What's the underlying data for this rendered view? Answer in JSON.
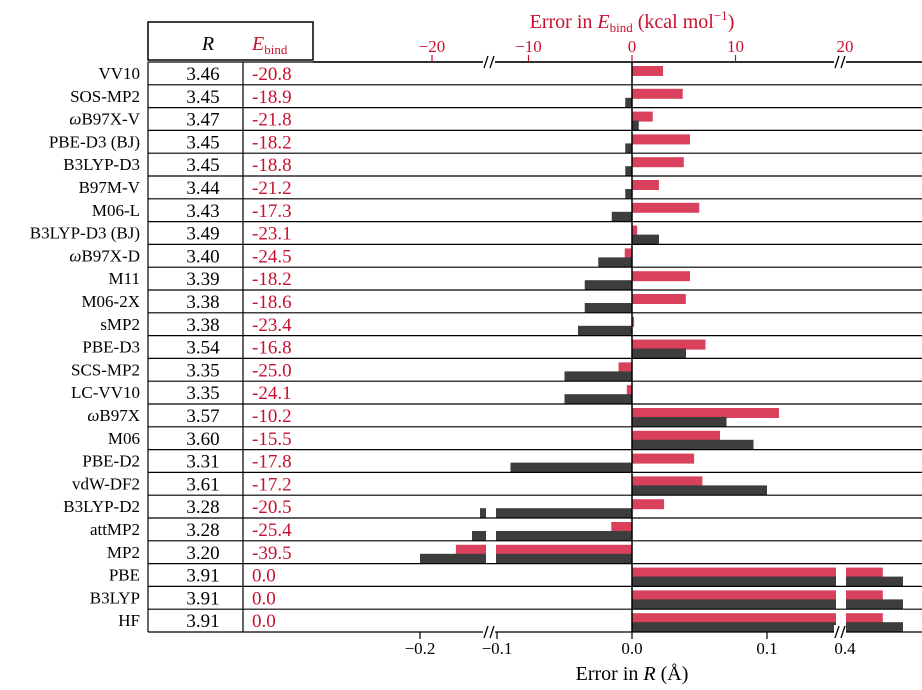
{
  "chart_data": {
    "type": "bar",
    "table_headers": {
      "r": "R",
      "ebind_main": "E",
      "ebind_sub": "bind"
    },
    "top_axis": {
      "label_main": "Error in ",
      "label_var": "E",
      "label_sub": "bind",
      "label_unit": " (kcal mol",
      "label_exp": "−1",
      "label_close": ")",
      "ticks": [
        "−20",
        "−10",
        "0",
        "10",
        "20"
      ]
    },
    "bottom_axis": {
      "label_main": "Error in ",
      "label_var": "R",
      "label_unit": " (Å)",
      "ticks": [
        "−0.2",
        "−0.1",
        "0.0",
        "0.1",
        "0.4"
      ]
    },
    "methods": [
      {
        "name": "VV10",
        "r": "3.46",
        "ebind": "-20.8",
        "err_e": 3.0,
        "err_r": 0.0
      },
      {
        "name": "SOS-MP2",
        "r": "3.45",
        "ebind": "-18.9",
        "err_e": 4.9,
        "err_r": -0.005
      },
      {
        "name": "ωB97X-V",
        "r": "3.47",
        "ebind": "-21.8",
        "err_e": 2.0,
        "err_r": 0.005
      },
      {
        "name": "PBE-D3 (BJ)",
        "r": "3.45",
        "ebind": "-18.2",
        "err_e": 5.6,
        "err_r": -0.005
      },
      {
        "name": "B3LYP-D3",
        "r": "3.45",
        "ebind": "-18.8",
        "err_e": 5.0,
        "err_r": -0.005
      },
      {
        "name": "B97M-V",
        "r": "3.44",
        "ebind": "-21.2",
        "err_e": 2.6,
        "err_r": -0.005
      },
      {
        "name": "M06-L",
        "r": "3.43",
        "ebind": "-17.3",
        "err_e": 6.5,
        "err_r": -0.015
      },
      {
        "name": "B3LYP-D3 (BJ)",
        "r": "3.49",
        "ebind": "-23.1",
        "err_e": 0.5,
        "err_r": 0.02
      },
      {
        "name": "ωB97X-D",
        "r": "3.40",
        "ebind": "-24.5",
        "err_e": -0.7,
        "err_r": -0.025
      },
      {
        "name": "M11",
        "r": "3.39",
        "ebind": "-18.2",
        "err_e": 5.6,
        "err_r": -0.035
      },
      {
        "name": "M06-2X",
        "r": "3.38",
        "ebind": "-18.6",
        "err_e": 5.2,
        "err_r": -0.035
      },
      {
        "name": "sMP2",
        "r": "3.38",
        "ebind": "-23.4",
        "err_e": 0.2,
        "err_r": -0.04
      },
      {
        "name": "PBE-D3",
        "r": "3.54",
        "ebind": "-16.8",
        "err_e": 7.1,
        "err_r": 0.04
      },
      {
        "name": "SCS-MP2",
        "r": "3.35",
        "ebind": "-25.0",
        "err_e": -1.3,
        "err_r": -0.05
      },
      {
        "name": "LC-VV10",
        "r": "3.35",
        "ebind": "-24.1",
        "err_e": -0.5,
        "err_r": -0.05
      },
      {
        "name": "ωB97X",
        "r": "3.57",
        "ebind": "-10.2",
        "err_e": 14.2,
        "err_r": 0.07
      },
      {
        "name": "M06",
        "r": "3.60",
        "ebind": "-15.5",
        "err_e": 8.5,
        "err_r": 0.09
      },
      {
        "name": "PBE-D2",
        "r": "3.31",
        "ebind": "-17.8",
        "err_e": 6.0,
        "err_r": -0.09
      },
      {
        "name": "vdW-DF2",
        "r": "3.61",
        "ebind": "-17.2",
        "err_e": 6.8,
        "err_r": 0.1
      },
      {
        "name": "B3LYP-D2",
        "r": "3.28",
        "ebind": "-20.5",
        "err_e": 3.1,
        "err_r": -0.125
      },
      {
        "name": "attMP2",
        "r": "3.28",
        "ebind": "-25.4",
        "err_e": -2.0,
        "err_r": -0.135
      },
      {
        "name": "MP2",
        "r": "3.20",
        "ebind": "-39.5",
        "err_e": -15.5,
        "err_r": -0.2
      },
      {
        "name": "PBE",
        "r": "3.91",
        "ebind": "0.0",
        "err_e": 23.6,
        "err_r": 0.44
      },
      {
        "name": "B3LYP",
        "r": "3.91",
        "ebind": "0.0",
        "err_e": 23.6,
        "err_r": 0.44
      },
      {
        "name": "HF",
        "r": "3.91",
        "ebind": "0.0",
        "err_e": 23.6,
        "err_r": 0.44
      }
    ],
    "colors": {
      "e_error": "#d8405b",
      "r_error": "#3d3d3d",
      "axis": "#000000",
      "red_text": "#c8102e"
    }
  }
}
